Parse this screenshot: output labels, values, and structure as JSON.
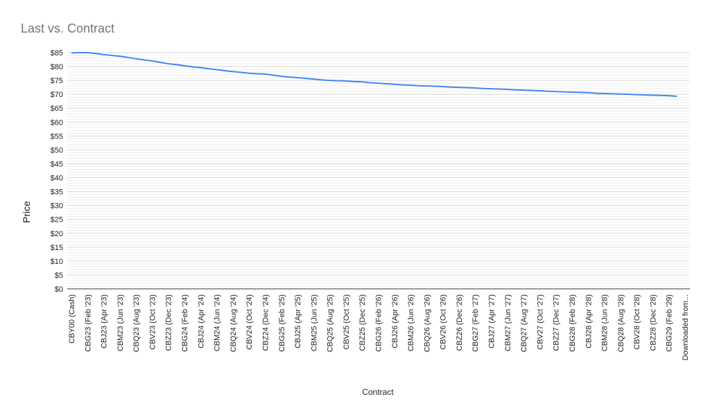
{
  "chart_data": {
    "type": "line",
    "title": "Last vs. Contract",
    "x_label": "Contract",
    "y_label": "Price",
    "color": "#4285f4",
    "grid": true,
    "ylim": [
      0,
      85
    ],
    "yticks": [
      {
        "value": 0,
        "label": "$0"
      },
      {
        "value": 5,
        "label": "$5"
      },
      {
        "value": 10,
        "label": "$10"
      },
      {
        "value": 15,
        "label": "$15"
      },
      {
        "value": 20,
        "label": "$20"
      },
      {
        "value": 25,
        "label": "$25"
      },
      {
        "value": 30,
        "label": "$30"
      },
      {
        "value": 35,
        "label": "$35"
      },
      {
        "value": 40,
        "label": "$40"
      },
      {
        "value": 45,
        "label": "$45"
      },
      {
        "value": 50,
        "label": "$50"
      },
      {
        "value": 55,
        "label": "$55"
      },
      {
        "value": 60,
        "label": "$60"
      },
      {
        "value": 65,
        "label": "$65"
      },
      {
        "value": 70,
        "label": "$70"
      },
      {
        "value": 75,
        "label": "$75"
      },
      {
        "value": 80,
        "label": "$80"
      },
      {
        "value": 85,
        "label": "$85"
      }
    ],
    "categories": [
      "CBY00 (Cash)",
      null,
      "CBG23 (Feb '23)",
      null,
      "CBJ23 (Apr '23)",
      null,
      "CBM23 (Jun '23)",
      null,
      "CBQ23 (Aug '23)",
      null,
      "CBV23 (Oct '23)",
      null,
      "CBZ23 (Dec '23)",
      null,
      "CBG24 (Feb '24)",
      null,
      "CBJ24 (Apr '24)",
      null,
      "CBM24 (Jun '24)",
      null,
      "CBQ24 (Aug '24)",
      null,
      "CBV24 (Oct '24)",
      null,
      "CBZ24 (Dec '24)",
      null,
      "CBG25 (Feb '25)",
      null,
      "CBJ25 (Apr '25)",
      null,
      "CBM25 (Jun '25)",
      null,
      "CBQ25 (Aug '25)",
      null,
      "CBV25 (Oct '25)",
      null,
      "CBZ25 (Dec '25)",
      null,
      "CBG26 (Feb '26)",
      null,
      "CBJ26 (Apr '26)",
      null,
      "CBM26 (Jun '26)",
      null,
      "CBQ26 (Aug '26)",
      null,
      "CBV26 (Oct '26)",
      null,
      "CBZ26 (Dec '26)",
      null,
      "CBG27 (Feb '27)",
      null,
      "CBJ27 (Apr '27)",
      null,
      "CBM27 (Jun '27)",
      null,
      "CBQ27 (Aug '27)",
      null,
      "CBV27 (Oct '27)",
      null,
      "CBZ27 (Dec '27)",
      null,
      "CBG28 (Feb '28)",
      null,
      "CBJ28 (Apr '28)",
      null,
      "CBM28 (Jun '28)",
      null,
      "CBQ28 (Aug '28)",
      null,
      "CBV28 (Oct '28)",
      null,
      "CBZ28 (Dec '28)",
      null,
      "CBG29 (Feb '29)",
      null,
      "Downloaded from..."
    ],
    "values": [
      84.9,
      85.0,
      85.0,
      84.7,
      84.3,
      84.0,
      83.7,
      83.3,
      82.8,
      82.4,
      82.0,
      81.5,
      81.0,
      80.7,
      80.3,
      79.9,
      79.6,
      79.2,
      78.9,
      78.5,
      78.2,
      77.9,
      77.6,
      77.4,
      77.3,
      76.9,
      76.5,
      76.2,
      76.0,
      75.7,
      75.5,
      75.2,
      75.0,
      74.9,
      74.8,
      74.6,
      74.5,
      74.2,
      74.0,
      73.8,
      73.6,
      73.4,
      73.3,
      73.1,
      73.0,
      72.9,
      72.8,
      72.6,
      72.5,
      72.4,
      72.3,
      72.1,
      72.0,
      71.9,
      71.8,
      71.6,
      71.5,
      71.4,
      71.3,
      71.1,
      71.0,
      70.9,
      70.8,
      70.7,
      70.6,
      70.4,
      70.3,
      70.2,
      70.1,
      70.0,
      69.9,
      69.8,
      69.7,
      69.6,
      69.5,
      69.3,
      null
    ]
  }
}
